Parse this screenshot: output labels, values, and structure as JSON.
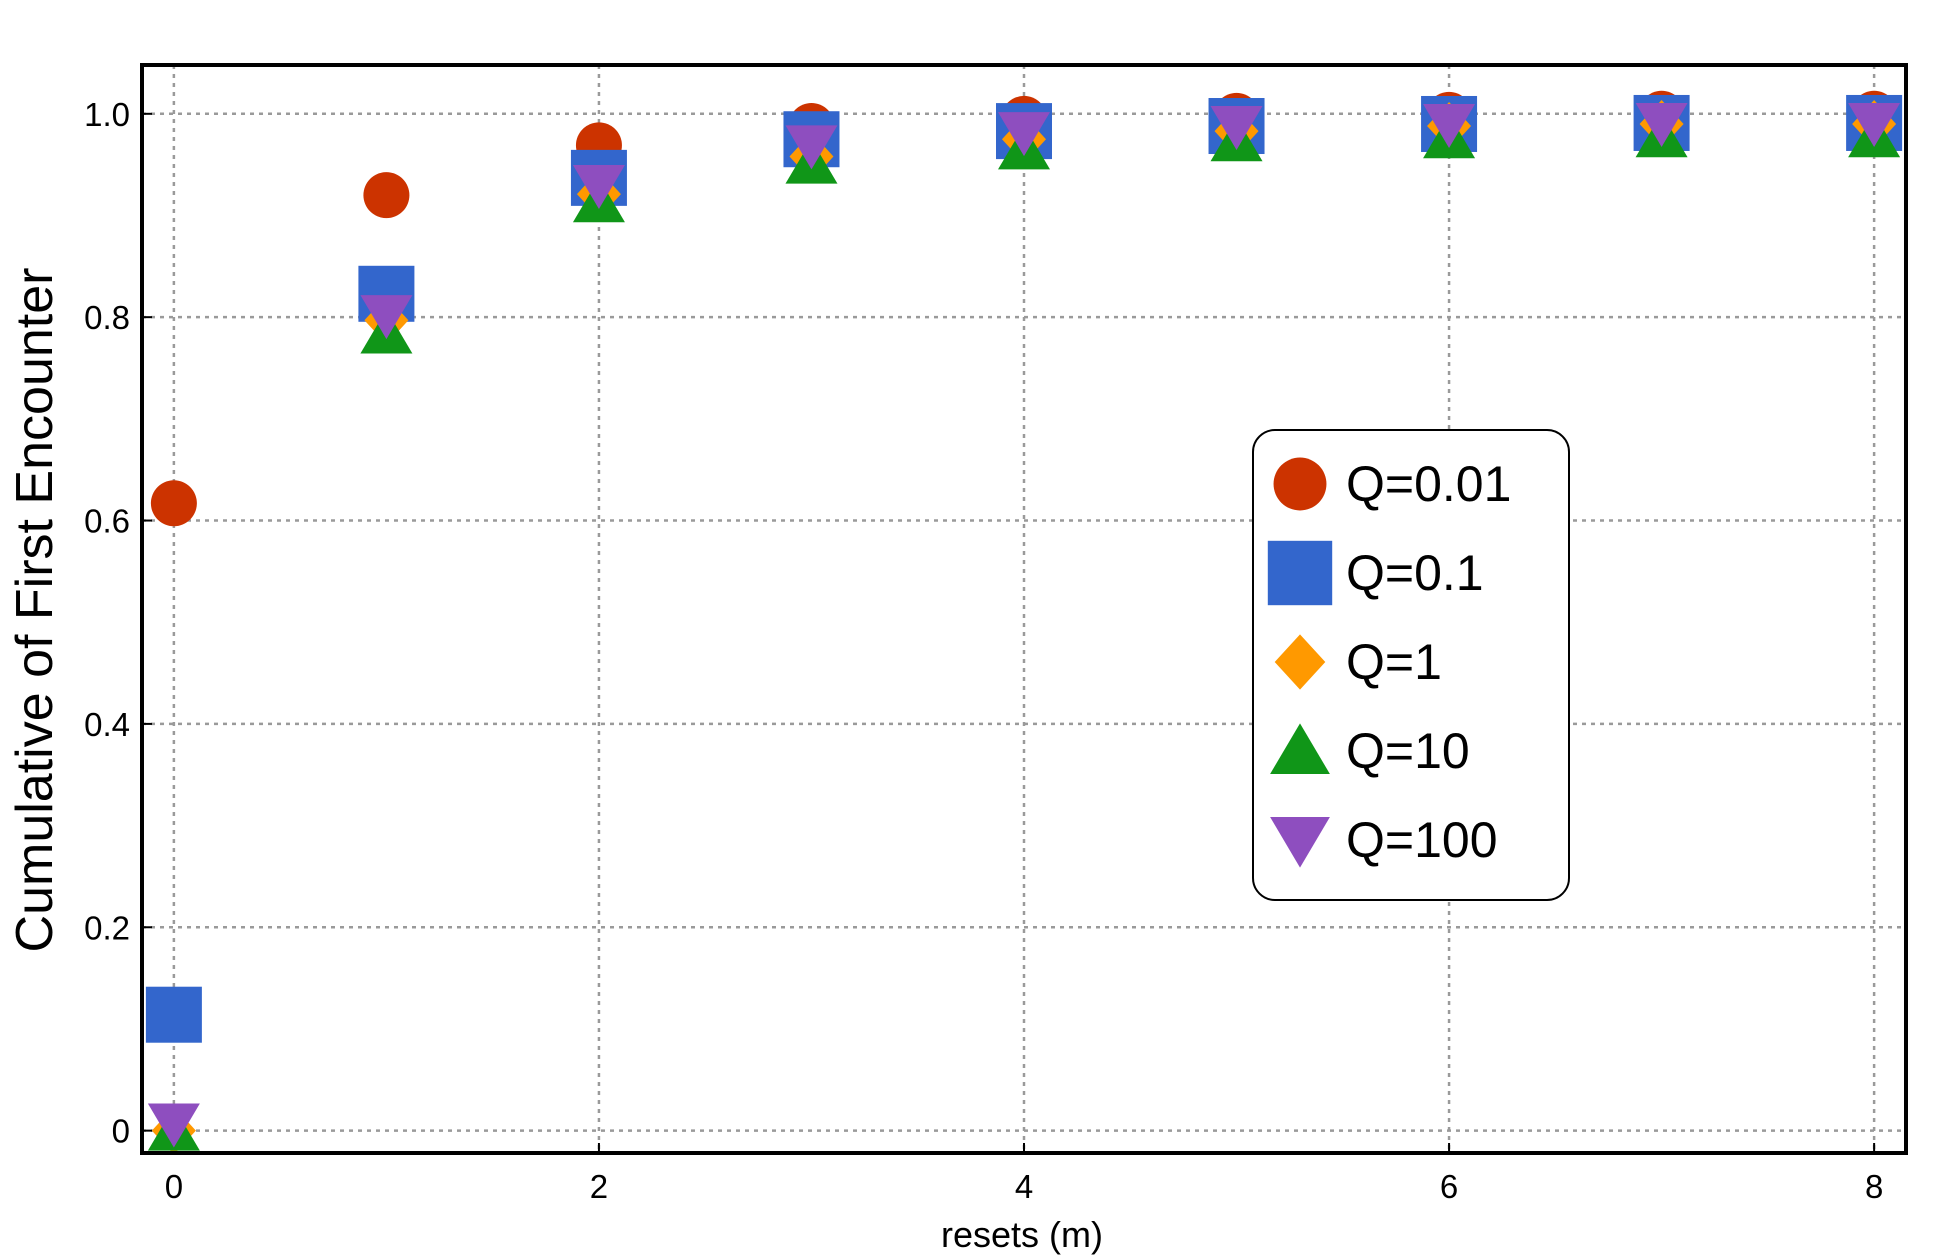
{
  "chart_data": {
    "type": "scatter",
    "title": "",
    "xlabel": "resets (m)",
    "ylabel": "Cumulative of First Encounter",
    "xlim": [
      -0.15,
      8.15
    ],
    "ylim": [
      -0.022,
      1.048
    ],
    "x": [
      0,
      1,
      2,
      3,
      4,
      5,
      6,
      7,
      8
    ],
    "xticks": [
      0,
      2,
      4,
      6,
      8
    ],
    "xtick_labels": [
      "0",
      "2",
      "4",
      "6",
      "8"
    ],
    "yticks": [
      0,
      0.2,
      0.4,
      0.6,
      0.8,
      1.0
    ],
    "ytick_labels": [
      "0",
      "0.2",
      "0.4",
      "0.6",
      "0.8",
      "1.0"
    ],
    "grid": true,
    "legend_position": "center-right",
    "series": [
      {
        "name": "Q=0.01",
        "marker": "circle",
        "color": "#cc3300",
        "values": [
          0.617,
          0.92,
          0.969,
          0.988,
          0.995,
          0.998,
          0.999,
          1.0,
          1.0
        ]
      },
      {
        "name": "Q=0.1",
        "marker": "square",
        "color": "#3366cc",
        "values": [
          0.114,
          0.823,
          0.937,
          0.975,
          0.983,
          0.988,
          0.99,
          0.991,
          0.991
        ]
      },
      {
        "name": "Q=1",
        "marker": "diamond",
        "color": "#ff9900",
        "values": [
          0.0,
          0.797,
          0.921,
          0.958,
          0.975,
          0.983,
          0.988,
          0.99,
          0.99
        ]
      },
      {
        "name": "Q=10",
        "marker": "triangle-up",
        "color": "#109618",
        "values": [
          0.0,
          0.784,
          0.913,
          0.951,
          0.965,
          0.973,
          0.976,
          0.977,
          0.977
        ]
      },
      {
        "name": "Q=100",
        "marker": "triangle-down",
        "color": "#8e4ebf",
        "values": [
          0.007,
          0.802,
          0.93,
          0.969,
          0.982,
          0.988,
          0.99,
          0.991,
          0.991
        ]
      }
    ]
  }
}
